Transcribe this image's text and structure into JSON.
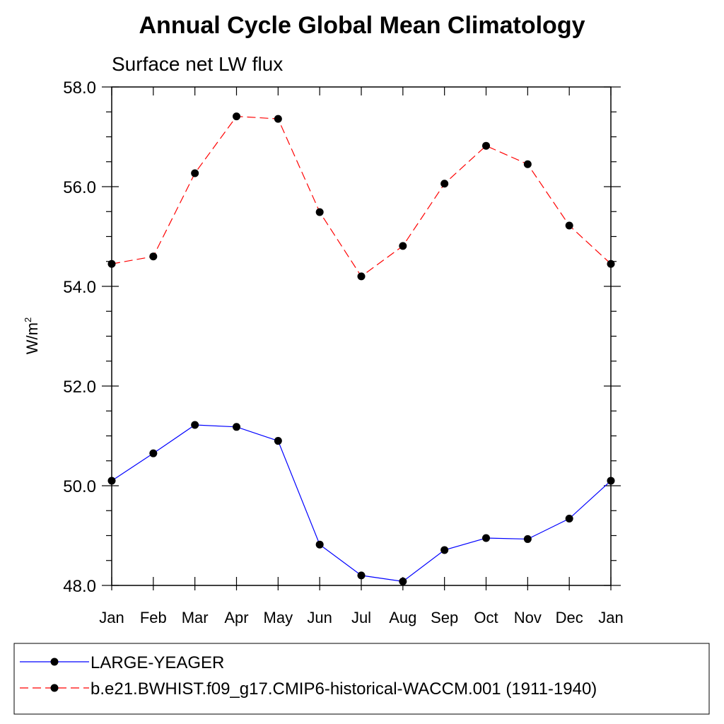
{
  "chart_data": {
    "type": "line",
    "title": "Annual Cycle Global Mean Climatology",
    "subtitle": "Surface net LW flux",
    "ylabel_base": "W/m",
    "ylabel_sup": "2",
    "xlabel": "",
    "categories": [
      "Jan",
      "Feb",
      "Mar",
      "Apr",
      "May",
      "Jun",
      "Jul",
      "Aug",
      "Sep",
      "Oct",
      "Nov",
      "Dec",
      "Jan"
    ],
    "ylim": [
      48.0,
      58.0
    ],
    "yticks": [
      "48.0",
      "50.0",
      "52.0",
      "54.0",
      "56.0",
      "58.0"
    ],
    "grid": false,
    "legend_placement": "bottom",
    "series": [
      {
        "name": "LARGE-YEAGER",
        "color": "#0000ff",
        "dash": "solid",
        "values": [
          50.1,
          50.65,
          51.22,
          51.18,
          50.9,
          48.82,
          48.2,
          48.08,
          48.71,
          48.95,
          48.93,
          49.34,
          50.1
        ]
      },
      {
        "name": "b.e21.BWHIST.f09_g17.CMIP6-historical-WACCM.001 (1911-1940)",
        "color": "#ff0000",
        "dash": "dashed",
        "values": [
          54.45,
          54.6,
          56.27,
          57.41,
          57.36,
          55.49,
          54.2,
          54.81,
          56.06,
          56.82,
          56.45,
          55.22,
          54.45
        ]
      }
    ]
  }
}
